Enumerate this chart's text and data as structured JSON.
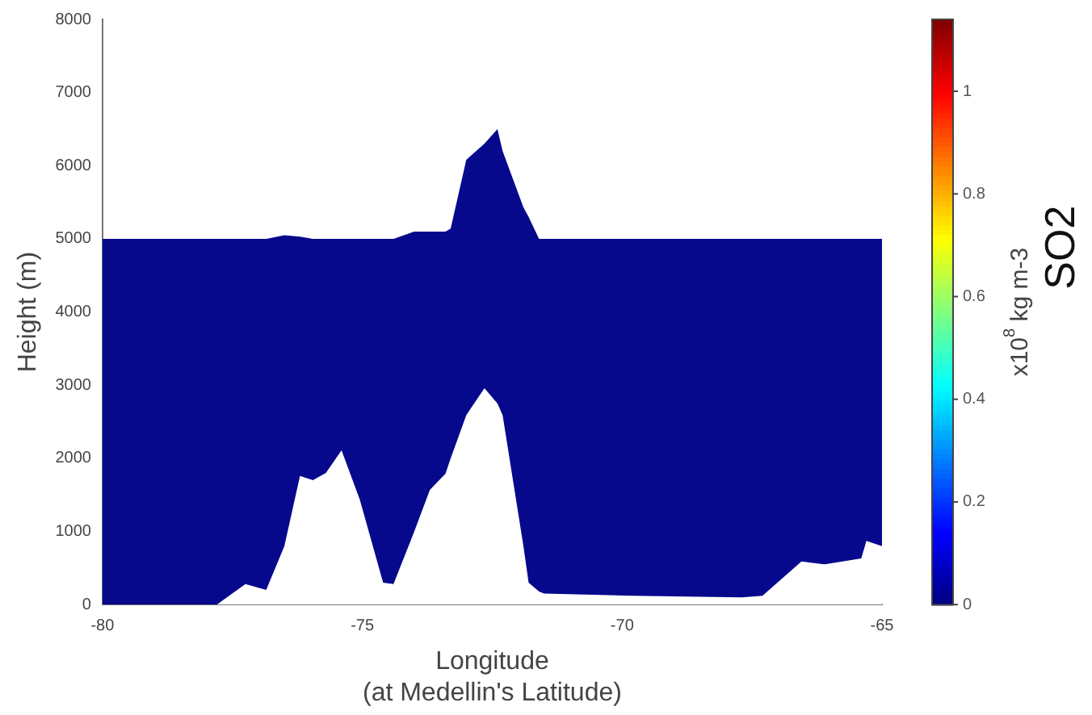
{
  "chart_data": {
    "type": "area",
    "xlabel": "Longitude\n(at Medellin's Latitude)",
    "ylabel": "Height (m)",
    "clabel": "x10$^{8}$ kg m-3",
    "annotations": [
      "SO2"
    ],
    "x": [
      -80,
      -77.8,
      -77.25,
      -76.85,
      -76.5,
      -76.2,
      -75.95,
      -75.7,
      -75.4,
      -75.05,
      -74.6,
      -74.4,
      -74.0,
      -73.7,
      -73.4,
      -73.3,
      -73.0,
      -72.65,
      -72.4,
      -72.3,
      -71.9,
      -71.8,
      -71.6,
      -71.5,
      -69.8,
      -67.7,
      -67.3,
      -66.55,
      -66.1,
      -65.4,
      -65.3,
      -65
    ],
    "series": [
      {
        "color": "#07098c",
        "values": [
          5000,
          5000,
          5000,
          5000,
          5050,
          5030,
          5000,
          5000,
          5000,
          5000,
          5000,
          5000,
          5100,
          5100,
          5100,
          5140,
          6080,
          6300,
          6500,
          6200,
          5430,
          5300,
          5000,
          5000,
          5000,
          5000,
          5000,
          5000,
          5000,
          5000,
          5000,
          5000
        ]
      },
      {
        "color": "#ffffff",
        "values": [
          0,
          0,
          280,
          200,
          800,
          1760,
          1700,
          1800,
          2110,
          1440,
          300,
          280,
          1000,
          1570,
          1790,
          2000,
          2590,
          2960,
          2750,
          2590,
          800,
          300,
          180,
          150,
          120,
          100,
          120,
          590,
          550,
          630,
          870,
          800
        ]
      }
    ],
    "xlim": [
      -80,
      -65
    ],
    "xticks": [
      -80,
      -75,
      -70,
      -65
    ],
    "ylim": [
      0,
      8000
    ],
    "yticks": [
      0,
      1000,
      2000,
      3000,
      4000,
      5000,
      6000,
      7000,
      8000
    ],
    "clim": [
      0,
      1.14
    ],
    "cticks": [
      0,
      0.2,
      0.4,
      0.6,
      0.8,
      1
    ]
  }
}
